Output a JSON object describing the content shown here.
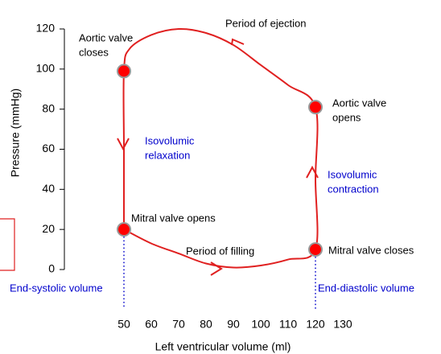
{
  "chart_data": {
    "type": "line",
    "y_label": "Pressure (mmHg)",
    "x_label": "Left ventricular volume (ml)",
    "xlim": [
      50,
      130
    ],
    "xticks": [
      50,
      60,
      70,
      80,
      90,
      100,
      110,
      120,
      130
    ],
    "ylim": [
      0,
      120
    ],
    "yticks": [
      0,
      20,
      40,
      60,
      80,
      100,
      120
    ],
    "series": [
      {
        "color": "#e02020",
        "x": [
          50,
          60,
          70,
          80,
          90,
          100,
          110,
          120,
          120,
          120,
          110,
          100,
          90,
          80,
          70,
          60,
          52,
          50,
          50,
          50
        ],
        "values": [
          20,
          13,
          8,
          3,
          1,
          2,
          5,
          10,
          45,
          81,
          92,
          102,
          112,
          118,
          120,
          117,
          110,
          99,
          60,
          20
        ]
      },
      {
        "color": "#ff0000",
        "marker": true,
        "x": [
          50,
          120,
          50,
          120
        ],
        "values": [
          99,
          81,
          20,
          10
        ]
      }
    ],
    "annotations": [
      {
        "lines": [
          "Period of ejection"
        ],
        "color": "#000000"
      },
      {
        "lines": [
          "Aortic valve",
          "closes"
        ],
        "color": "#000000"
      },
      {
        "lines": [
          "Aortic valve",
          "opens"
        ],
        "color": "#000000"
      },
      {
        "lines": [
          "Isovolumic",
          "relaxation"
        ],
        "color": "#0000cc"
      },
      {
        "lines": [
          "Isovolumic",
          "contraction"
        ],
        "color": "#0000cc"
      },
      {
        "lines": [
          "Mitral valve opens"
        ],
        "color": "#000000"
      },
      {
        "lines": [
          "Period of filling"
        ],
        "color": "#000000"
      },
      {
        "lines": [
          "Mitral valve closes"
        ],
        "color": "#000000"
      },
      {
        "lines": [
          "End-systolic volume"
        ],
        "color": "#0000cc"
      },
      {
        "lines": [
          "End-diastolic volume"
        ],
        "color": "#0000cc"
      }
    ]
  }
}
